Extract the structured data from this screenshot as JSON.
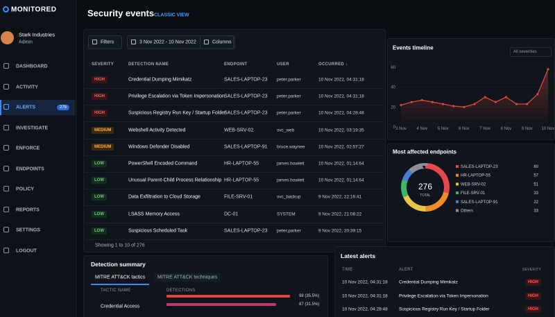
{
  "sidebar": {
    "brand": "MONITORED",
    "user": {
      "name": "Stark Industries",
      "role": "Admin"
    },
    "nav": [
      {
        "label": "DASHBOARD"
      },
      {
        "label": "ACTIVITY"
      },
      {
        "label": "ALERTS",
        "badge": "276",
        "active": true
      },
      {
        "label": "INVESTIGATE"
      },
      {
        "label": "ENFORCE"
      },
      {
        "label": "ENDPOINTS"
      },
      {
        "label": "POLICY"
      },
      {
        "label": "REPORTS"
      },
      {
        "label": "SETTINGS"
      },
      {
        "label": "LOGOUT"
      }
    ]
  },
  "header": {
    "title": "Security events",
    "link": "CLASSIC VIEW"
  },
  "toolbar": {
    "filters": "Filters",
    "date_range": "3 Nov 2022 - 10 Nov 2022",
    "columns": "Columns"
  },
  "table": {
    "columns": [
      "SEVERITY",
      "DETECTION NAME",
      "ENDPOINT",
      "USER",
      "OCCURRED ↓"
    ],
    "rows": [
      [
        "HIGH",
        "Credential Dumping Mimikatz",
        "SALES-LAPTOP-23",
        "peter.parker",
        "10 Nov 2022, 04:31:18"
      ],
      [
        "HIGH",
        "Privilege Escalation via Token Impersonation",
        "SALES-LAPTOP-23",
        "peter.parker",
        "10 Nov 2022, 04:31:18"
      ],
      [
        "HIGH",
        "Suspicious Registry Run Key / Startup Folder",
        "SALES-LAPTOP-23",
        "peter.parker",
        "10 Nov 2022, 04:28:48"
      ],
      [
        "MEDIUM",
        "Webshell Activity Detected",
        "WEB-SRV-02",
        "svc_web",
        "10 Nov 2022, 03:19:35"
      ],
      [
        "MEDIUM",
        "Windows Defender Disabled",
        "SALES-LAPTOP-91",
        "bruce.waynee",
        "10 Nov 2022, 02:57:27"
      ],
      [
        "LOW",
        "PowerShell Encoded Command",
        "HR-LAPTOP-55",
        "james.howlett",
        "10 Nov 2022, 01:14:64"
      ],
      [
        "LOW",
        "Unusual Parent-Child Process Relationship",
        "HR-LAPTOP-55",
        "james.howlett",
        "10 Nov 2022, 01:14:64"
      ],
      [
        "LOW",
        "Data Exfiltration to Cloud Storage",
        "FILE-SRV-01",
        "svc_backup",
        "9 Nov 2022, 22:16:41"
      ],
      [
        "LOW",
        "LSASS Memory Access",
        "DC-01",
        "SYSTEM",
        "9 Nov 2022, 21:08:22"
      ],
      [
        "LOW",
        "Suspicious Scheduled Task",
        "SALES-LAPTOP-23",
        "peter.parker",
        "9 Nov 2022, 20:39:15"
      ]
    ],
    "footer": "Showing 1 to 10 of 276"
  },
  "events_timeline": {
    "type": "line",
    "title": "Events timeline",
    "filter": "All severities",
    "categories": [
      "3 Nov",
      null,
      "4 Nov",
      null,
      "5 Nov",
      null,
      "6 Nov",
      null,
      "7 Nov",
      null,
      "8 Nov",
      null,
      "9 Nov",
      null,
      "10 Nov"
    ],
    "series": [
      {
        "color": "#e0463a",
        "values": [
          22,
          25,
          27,
          25,
          23,
          21,
          20,
          23,
          30,
          25,
          30,
          23,
          23,
          33,
          58
        ]
      }
    ],
    "ylim": [
      0,
      60
    ],
    "yticks": [
      0,
      20,
      40,
      60
    ],
    "grid": true
  },
  "affected_endpoints": {
    "type": "donut",
    "title": "Most affected endpoints",
    "center_value": "276",
    "center_label": "TOTAL",
    "categories": [
      "SALES-LAPTOP-23",
      "HR-LAPTOP-55",
      "WEB-SRV-02",
      "FILE-SRV-01",
      "SALES-LAPTOP-91",
      "Others"
    ],
    "values": [
      80,
      57,
      51,
      33,
      22,
      33
    ],
    "colors": [
      "#e5484d",
      "#f08c2e",
      "#e8c547",
      "#3bb56a",
      "#4a7fd6",
      "#8a8f98"
    ]
  },
  "detection_summary": {
    "title": "Detection summary",
    "tabs": [
      "MITRE ATT&CK tactics",
      "MITRE ATT&CK techniques"
    ],
    "columns": [
      "TACTIC NAME",
      "DETECTIONS"
    ],
    "rows": [
      {
        "detections": 98,
        "label": "98 (35.5%)",
        "color": "#e0463a"
      },
      {
        "name": "Credential Access",
        "detections": 87,
        "label": "87 (31.5%)",
        "color": "#c23a6a"
      }
    ]
  },
  "latest_alerts": {
    "title": "Latest alerts",
    "columns": [
      "TIME",
      "ALERT",
      "SEVERITY"
    ],
    "rows": [
      [
        "10 Nov 2022, 04:31:18",
        "Credential Dumping Mimikatz",
        "HIGH"
      ],
      [
        "10 Nov 2022, 04:31:18",
        "Privilege Escalation via Token Impersonation",
        "HIGH"
      ],
      [
        "10 Nov 2022, 04:28:48",
        "Suspicious Registry Run Key / Startup Folder",
        "HIGH"
      ]
    ]
  }
}
